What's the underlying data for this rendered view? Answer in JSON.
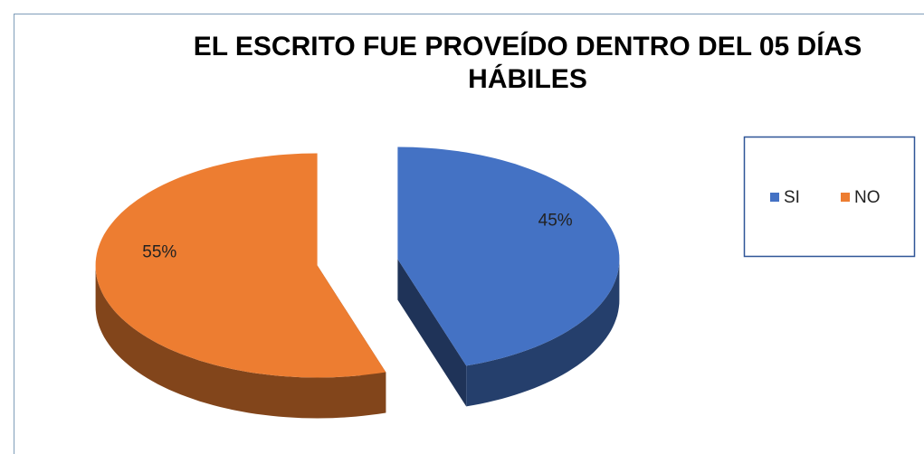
{
  "chart_data": {
    "type": "pie",
    "title": "EL ESCRITO FUE PROVEÍDO DENTRO DEL 05 DÍAS HÁBILES",
    "categories": [
      "SI",
      "NO"
    ],
    "values": [
      45,
      55
    ],
    "value_labels": [
      "45%",
      "55%"
    ],
    "colors": [
      "#4472c4",
      "#ed7d31"
    ],
    "legend": "right"
  }
}
